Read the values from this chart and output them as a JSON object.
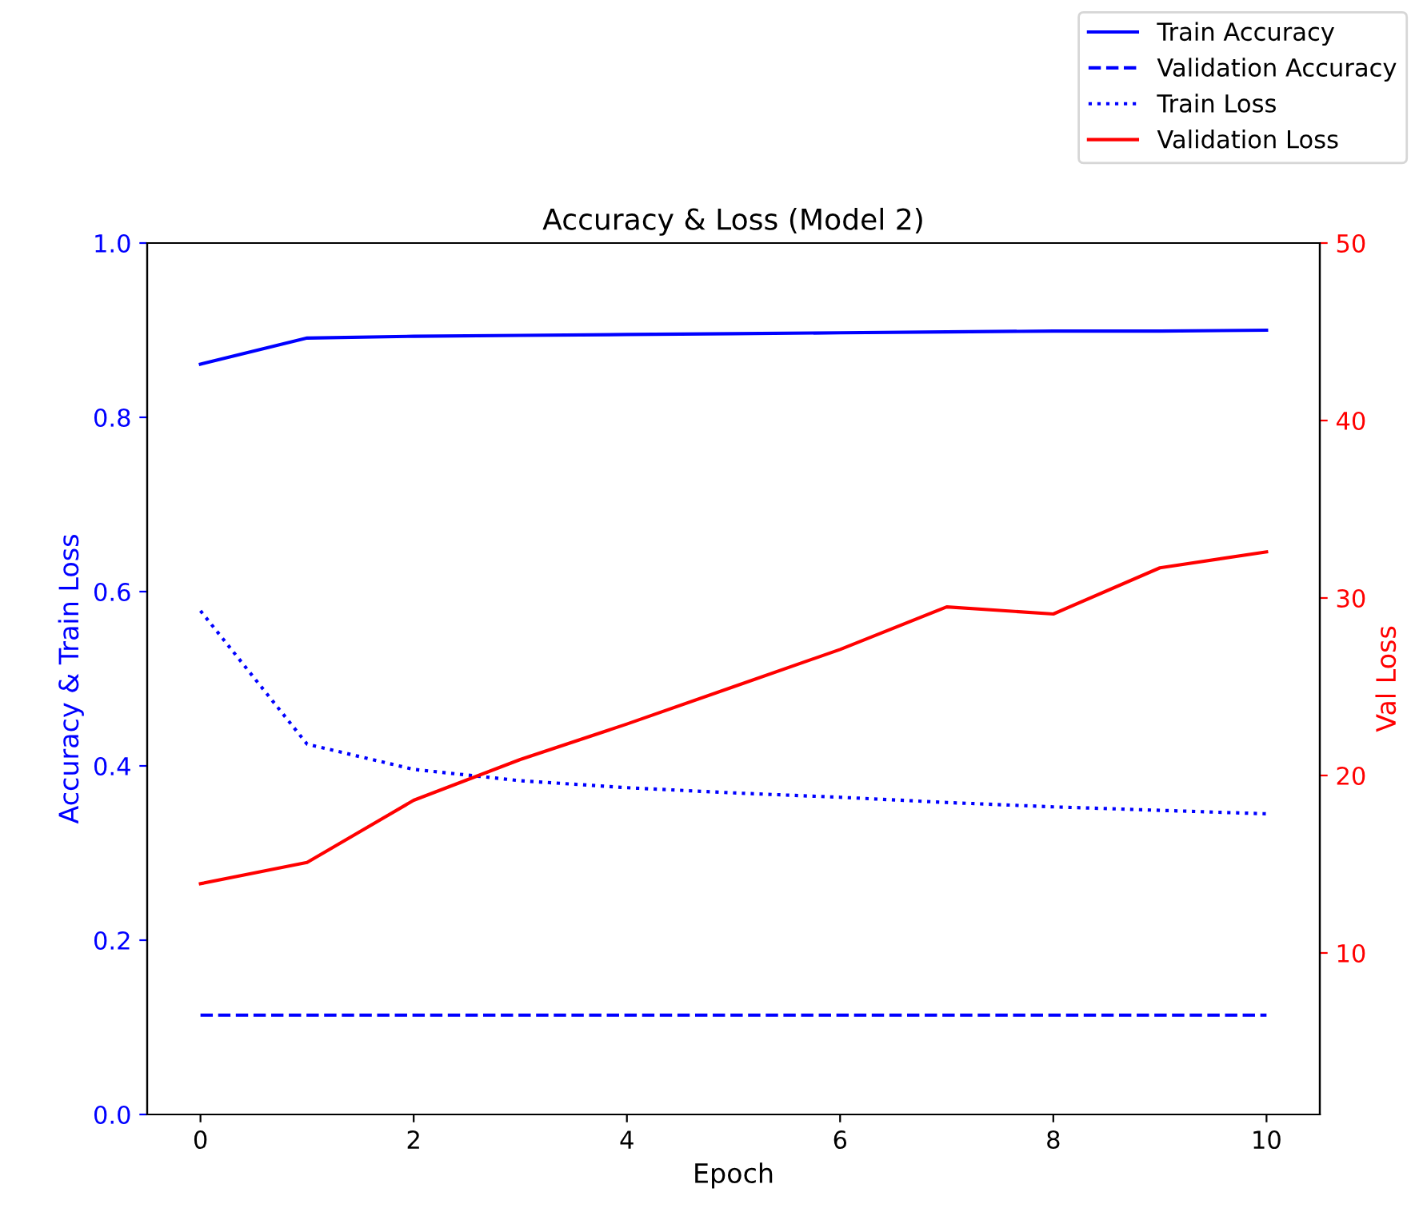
{
  "chart_data": {
    "type": "line",
    "title": "Accuracy & Loss (Model 2)",
    "xlabel": "Epoch",
    "ylabel": "Accuracy & Train Loss",
    "y2label": "Val Loss",
    "x": [
      0,
      1,
      2,
      3,
      4,
      5,
      6,
      7,
      8,
      9,
      10
    ],
    "series": [
      {
        "name": "Train Accuracy",
        "color": "#0000ff",
        "line_style": "solid",
        "values": [
          0.861,
          0.891,
          0.893,
          0.894,
          0.895,
          0.896,
          0.897,
          0.898,
          0.899,
          0.899,
          0.9
        ]
      },
      {
        "name": "Validation Accuracy",
        "color": "#0000ff",
        "line_style": "dashed",
        "values": [
          0.114,
          0.114,
          0.114,
          0.114,
          0.114,
          0.114,
          0.114,
          0.114,
          0.114,
          0.114,
          0.114
        ]
      },
      {
        "name": "Train Loss",
        "color": "#0000ff",
        "line_style": "dotted",
        "values": [
          0.578,
          0.425,
          0.396,
          0.383,
          0.375,
          0.369,
          0.364,
          0.358,
          0.353,
          0.349,
          0.345
        ]
      },
      {
        "name": "Validation Loss",
        "color": "#ff0000",
        "line_style": "solid",
        "axis": "y2",
        "values": [
          13.9,
          15.1,
          18.6,
          20.9,
          22.9,
          25.0,
          27.1,
          29.5,
          29.1,
          31.7,
          32.6
        ]
      }
    ],
    "xlim": [
      -0.5,
      10.5
    ],
    "xticks": [
      0,
      2,
      4,
      6,
      8,
      10
    ],
    "ylim": [
      0,
      1
    ],
    "yticks": [
      {
        "value": 0,
        "label": "0.0"
      },
      0.2,
      0.4,
      0.6,
      0.8,
      {
        "value": 1,
        "label": "1.0"
      }
    ],
    "y2lim": [
      0.9,
      50
    ],
    "y2ticks": [
      10,
      20,
      30,
      40,
      50
    ],
    "grid": false,
    "legend": "top right",
    "marker": "none"
  }
}
